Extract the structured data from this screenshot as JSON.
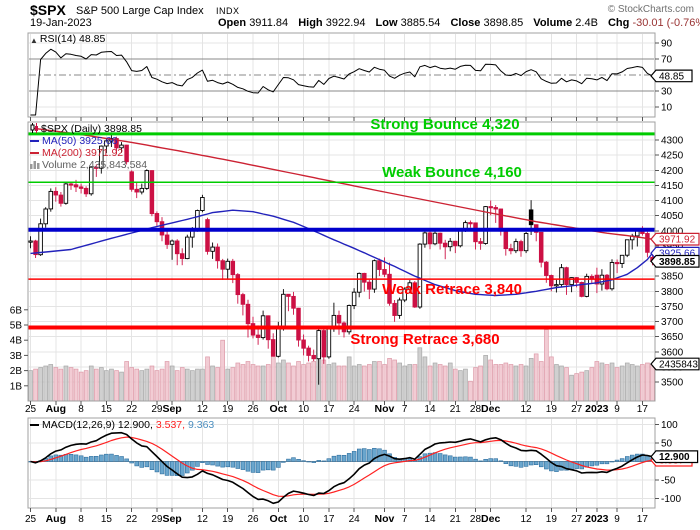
{
  "header": {
    "symbol": "$SPX",
    "name": "S&P 500 Large Cap Index",
    "exchange": "INDX",
    "credit": "© StockCharts.com",
    "date": "19-Jan-2023",
    "open_label": "Open",
    "open": "3911.84",
    "high_label": "High",
    "high": "3922.94",
    "low_label": "Low",
    "low": "3885.54",
    "close_label": "Close",
    "close": "3898.85",
    "volume_label": "Volume",
    "volume": "2.4B",
    "chg_label": "Chg",
    "chg": "-30.01 (-0.76%)",
    "chg_arrow": "▼"
  },
  "rsi_panel": {
    "legend": "RSI(14) 48.85"
  },
  "main_panel": {
    "legend_symbol": "$SPX (Daily) 3898.85",
    "legend_ma50": "MA(50) 3925.66",
    "legend_ma200": "MA(200) 3971.92",
    "legend_volume": "Volume 2,435,843,584",
    "annotations": [
      {
        "text": "Strong Bounce 4,320",
        "value": 4320,
        "color": "#00cc00"
      },
      {
        "text": "Weak Bounce 4,160",
        "value": 4160,
        "color": "#00cc00"
      },
      {
        "text": "Weak Retrace 3,840",
        "value": 3840,
        "color": "#ff0000"
      },
      {
        "text": "Strong Retrace 3,680",
        "value": 3680,
        "color": "#ff0000"
      }
    ]
  },
  "macd_panel": {
    "legend_name": "MACD(12,26,9)",
    "v1": "12.900,",
    "v2": "3.537,",
    "v3": "9.363"
  },
  "chart_data": {
    "type": "candlestick",
    "title": "$SPX S&P 500 Large Cap Index daily with RSI(14), MA(50), MA(200), volume and MACD(12,26,9)",
    "price_axis": {
      "min": 3500,
      "max": 4300,
      "step": 50
    },
    "volume_axis_labels": [
      "6B",
      "5B",
      "4B",
      "3B",
      "2B",
      "1B"
    ],
    "rsi_axis_labels": [
      90,
      70,
      30,
      10
    ],
    "macd_axis_labels": [
      100,
      50,
      -50,
      -100
    ],
    "x_ticks": [
      {
        "i": 0,
        "l": "25",
        "m": 0
      },
      {
        "i": 5,
        "l": "Aug",
        "m": 1
      },
      {
        "i": 10,
        "l": "8",
        "m": 0
      },
      {
        "i": 15,
        "l": "15",
        "m": 0
      },
      {
        "i": 20,
        "l": "22",
        "m": 0
      },
      {
        "i": 25,
        "l": "29",
        "m": 0
      },
      {
        "i": 28,
        "l": "Sep",
        "m": 1
      },
      {
        "i": 34,
        "l": "12",
        "m": 0
      },
      {
        "i": 39,
        "l": "19",
        "m": 0
      },
      {
        "i": 44,
        "l": "26",
        "m": 0
      },
      {
        "i": 49,
        "l": "Oct",
        "m": 1
      },
      {
        "i": 54,
        "l": "10",
        "m": 0
      },
      {
        "i": 59,
        "l": "17",
        "m": 0
      },
      {
        "i": 64,
        "l": "24",
        "m": 0
      },
      {
        "i": 70,
        "l": "Nov",
        "m": 1
      },
      {
        "i": 74,
        "l": "7",
        "m": 0
      },
      {
        "i": 79,
        "l": "14",
        "m": 0
      },
      {
        "i": 84,
        "l": "21",
        "m": 0
      },
      {
        "i": 88,
        "l": "28",
        "m": 0
      },
      {
        "i": 91,
        "l": "Dec",
        "m": 1
      },
      {
        "i": 98,
        "l": "12",
        "m": 0
      },
      {
        "i": 103,
        "l": "19",
        "m": 0
      },
      {
        "i": 108,
        "l": "27",
        "m": 0
      },
      {
        "i": 112,
        "l": "2023",
        "m": 1
      },
      {
        "i": 116,
        "l": "9",
        "m": 0
      },
      {
        "i": 121,
        "l": "17",
        "m": 0
      }
    ],
    "hlines": [
      {
        "value": 4320,
        "color": "#00cc00",
        "width": 3
      },
      {
        "value": 4160,
        "color": "#00cc00",
        "width": 1.5
      },
      {
        "value": 4003,
        "color": "#0000cc",
        "width": 4
      },
      {
        "value": 3840,
        "color": "#ff0000",
        "width": 1.5
      },
      {
        "value": 3680,
        "color": "#ff0000",
        "width": 4
      }
    ],
    "rsi_lines": [
      {
        "value": 70,
        "style": "solid"
      },
      {
        "value": 50,
        "style": "dashdot"
      },
      {
        "value": 30,
        "style": "solid"
      }
    ],
    "tags": [
      {
        "panel": "rsi",
        "value": 48.85,
        "text": "48.85",
        "color": "#000000",
        "bold": false
      },
      {
        "panel": "price",
        "value": 3971.92,
        "text": "3971.92",
        "color": "#cc2233",
        "bold": false
      },
      {
        "panel": "price",
        "value": 3925.66,
        "text": "3925.66",
        "color": "#2222bb",
        "bold": false
      },
      {
        "panel": "price",
        "value": 3898.85,
        "text": "3898.85",
        "color": "#000000",
        "bold": true
      },
      {
        "panel": "volume",
        "value": 2.435,
        "text": "2435843",
        "color": "#000000",
        "bold": false
      },
      {
        "panel": "macd",
        "value": 3.537,
        "text": "3.537",
        "color": "#ff2222",
        "bold": false
      },
      {
        "panel": "macd",
        "value": 12.9,
        "text": "12.900",
        "color": "#000000",
        "bold": true
      }
    ],
    "indicators": {
      "rsi_period": 14,
      "macd_fast": 12,
      "macd_slow": 26,
      "macd_signal": 9
    },
    "ma50_points": [
      [
        0,
        3925
      ],
      [
        8,
        3938
      ],
      [
        16,
        3975
      ],
      [
        24,
        4010
      ],
      [
        32,
        4042
      ],
      [
        36,
        4060
      ],
      [
        40,
        4068
      ],
      [
        44,
        4063
      ],
      [
        48,
        4048
      ],
      [
        52,
        4028
      ],
      [
        56,
        4000
      ],
      [
        60,
        3970
      ],
      [
        64,
        3942
      ],
      [
        68,
        3912
      ],
      [
        72,
        3882
      ],
      [
        76,
        3850
      ],
      [
        80,
        3822
      ],
      [
        84,
        3802
      ],
      [
        88,
        3790
      ],
      [
        92,
        3786
      ],
      [
        96,
        3790
      ],
      [
        100,
        3800
      ],
      [
        104,
        3812
      ],
      [
        108,
        3820
      ],
      [
        112,
        3828
      ],
      [
        115,
        3838
      ],
      [
        118,
        3856
      ],
      [
        120,
        3878
      ],
      [
        122,
        3905
      ],
      [
        123,
        3926
      ]
    ],
    "ma200_points": [
      [
        0,
        4340
      ],
      [
        10,
        4318
      ],
      [
        20,
        4292
      ],
      [
        30,
        4262
      ],
      [
        40,
        4230
      ],
      [
        50,
        4196
      ],
      [
        60,
        4162
      ],
      [
        70,
        4128
      ],
      [
        80,
        4095
      ],
      [
        90,
        4062
      ],
      [
        100,
        4030
      ],
      [
        108,
        4008
      ],
      [
        114,
        3992
      ],
      [
        118,
        3984
      ],
      [
        121,
        3977
      ],
      [
        123,
        3972
      ]
    ],
    "candles": [
      [
        3965,
        3982,
        3942,
        3966
      ],
      [
        3966,
        3970,
        3910,
        3921
      ],
      [
        3921,
        4040,
        3917,
        4023
      ],
      [
        4023,
        4078,
        4010,
        4072
      ],
      [
        4072,
        4140,
        4063,
        4130
      ],
      [
        4130,
        4144,
        4096,
        4118
      ],
      [
        4118,
        4128,
        4080,
        4091
      ],
      [
        4091,
        4160,
        4086,
        4155
      ],
      [
        4155,
        4161,
        4135,
        4152
      ],
      [
        4152,
        4168,
        4128,
        4145
      ],
      [
        4145,
        4156,
        4123,
        4140
      ],
      [
        4140,
        4147,
        4112,
        4122
      ],
      [
        4122,
        4212,
        4116,
        4210
      ],
      [
        4210,
        4219,
        4178,
        4207
      ],
      [
        4207,
        4282,
        4189,
        4280
      ],
      [
        4280,
        4302,
        4257,
        4297
      ],
      [
        4297,
        4325,
        4277,
        4305
      ],
      [
        4305,
        4311,
        4254,
        4274
      ],
      [
        4274,
        4293,
        4258,
        4283
      ],
      [
        4283,
        4284,
        4219,
        4228
      ],
      [
        4195,
        4200,
        4129,
        4137
      ],
      [
        4137,
        4159,
        4108,
        4128
      ],
      [
        4128,
        4156,
        4120,
        4140
      ],
      [
        4140,
        4203,
        4135,
        4199
      ],
      [
        4199,
        4200,
        4048,
        4057
      ],
      [
        4057,
        4064,
        4015,
        4030
      ],
      [
        4030,
        4045,
        3965,
        3986
      ],
      [
        3986,
        4000,
        3940,
        3955
      ],
      [
        3955,
        3971,
        3904,
        3966
      ],
      [
        3966,
        3972,
        3886,
        3924
      ],
      [
        3924,
        3942,
        3886,
        3908
      ],
      [
        3908,
        3987,
        3906,
        3979
      ],
      [
        3979,
        4012,
        3944,
        4006
      ],
      [
        4006,
        4070,
        3997,
        4067
      ],
      [
        4067,
        4119,
        4061,
        4110
      ],
      [
        4037,
        4043,
        3921,
        3932
      ],
      [
        3932,
        3961,
        3907,
        3946
      ],
      [
        3946,
        3958,
        3875,
        3901
      ],
      [
        3901,
        3907,
        3838,
        3873
      ],
      [
        3873,
        3908,
        3842,
        3899
      ],
      [
        3899,
        3907,
        3827,
        3855
      ],
      [
        3855,
        3860,
        3759,
        3789
      ],
      [
        3789,
        3795,
        3720,
        3757
      ],
      [
        3757,
        3772,
        3647,
        3693
      ],
      [
        3693,
        3716,
        3644,
        3655
      ],
      [
        3655,
        3687,
        3623,
        3647
      ],
      [
        3647,
        3736,
        3640,
        3719
      ],
      [
        3719,
        3720,
        3610,
        3640
      ],
      [
        3640,
        3661,
        3584,
        3585
      ],
      [
        3585,
        3699,
        3581,
        3678
      ],
      [
        3678,
        3807,
        3670,
        3790
      ],
      [
        3790,
        3791,
        3734,
        3783
      ],
      [
        3783,
        3798,
        3722,
        3744
      ],
      [
        3744,
        3745,
        3617,
        3639
      ],
      [
        3639,
        3657,
        3588,
        3612
      ],
      [
        3612,
        3620,
        3568,
        3588
      ],
      [
        3588,
        3607,
        3569,
        3577
      ],
      [
        3577,
        3685,
        3491,
        3670
      ],
      [
        3670,
        3674,
        3560,
        3583
      ],
      [
        3583,
        3685,
        3577,
        3678
      ],
      [
        3678,
        3762,
        3666,
        3720
      ],
      [
        3720,
        3736,
        3656,
        3695
      ],
      [
        3695,
        3700,
        3647,
        3666
      ],
      [
        3666,
        3756,
        3657,
        3753
      ],
      [
        3753,
        3810,
        3741,
        3797
      ],
      [
        3797,
        3862,
        3780,
        3859
      ],
      [
        3859,
        3861,
        3799,
        3830
      ],
      [
        3830,
        3838,
        3774,
        3807
      ],
      [
        3807,
        3905,
        3795,
        3901
      ],
      [
        3901,
        3908,
        3850,
        3872
      ],
      [
        3872,
        3912,
        3847,
        3856
      ],
      [
        3856,
        3895,
        3752,
        3760
      ],
      [
        3760,
        3771,
        3699,
        3720
      ],
      [
        3720,
        3779,
        3709,
        3771
      ],
      [
        3771,
        3813,
        3764,
        3807
      ],
      [
        3807,
        3837,
        3793,
        3828
      ],
      [
        3828,
        3834,
        3745,
        3748
      ],
      [
        3748,
        3959,
        3742,
        3956
      ],
      [
        3956,
        4001,
        3944,
        3993
      ],
      [
        3993,
        4005,
        3939,
        3957
      ],
      [
        3957,
        4003,
        3952,
        3992
      ],
      [
        3992,
        3994,
        3938,
        3959
      ],
      [
        3959,
        3970,
        3906,
        3947
      ],
      [
        3947,
        3976,
        3932,
        3965
      ],
      [
        3965,
        3967,
        3926,
        3950
      ],
      [
        3950,
        4007,
        3945,
        4004
      ],
      [
        4004,
        4034,
        3996,
        4027
      ],
      [
        4027,
        4034,
        4010,
        4026
      ],
      [
        4026,
        4027,
        3938,
        3964
      ],
      [
        3964,
        3976,
        3937,
        3958
      ],
      [
        3958,
        4081,
        3954,
        4080
      ],
      [
        4080,
        4100,
        4051,
        4077
      ],
      [
        4077,
        4085,
        4026,
        4072
      ],
      [
        4072,
        4073,
        3984,
        3999
      ],
      [
        3999,
        4001,
        3918,
        3941
      ],
      [
        3941,
        3957,
        3922,
        3934
      ],
      [
        3934,
        3974,
        3926,
        3964
      ],
      [
        3964,
        3970,
        3914,
        3934
      ],
      [
        3934,
        3996,
        3926,
        3991
      ],
      [
        4069,
        4101,
        3986,
        4020
      ],
      [
        4020,
        4021,
        3965,
        3995
      ],
      [
        3995,
        3996,
        3879,
        3896
      ],
      [
        3896,
        3900,
        3828,
        3852
      ],
      [
        3852,
        3855,
        3800,
        3818
      ],
      [
        3818,
        3838,
        3796,
        3822
      ],
      [
        3822,
        3890,
        3815,
        3878
      ],
      [
        3878,
        3881,
        3788,
        3822
      ],
      [
        3822,
        3846,
        3797,
        3845
      ],
      [
        3845,
        3847,
        3813,
        3829
      ],
      [
        3829,
        3832,
        3780,
        3783
      ],
      [
        3783,
        3858,
        3780,
        3849
      ],
      [
        3849,
        3856,
        3824,
        3840
      ],
      [
        3853,
        3878,
        3794,
        3824
      ],
      [
        3824,
        3873,
        3802,
        3853
      ],
      [
        3853,
        3857,
        3803,
        3808
      ],
      [
        3808,
        3906,
        3802,
        3895
      ],
      [
        3895,
        3905,
        3860,
        3892
      ],
      [
        3892,
        3920,
        3877,
        3919
      ],
      [
        3919,
        3971,
        3913,
        3970
      ],
      [
        3970,
        3990,
        3938,
        3983
      ],
      [
        3983,
        4003,
        3948,
        3999
      ],
      [
        3999,
        4015,
        3984,
        3991
      ],
      [
        3991,
        3997,
        3912,
        3929
      ],
      [
        3912,
        3923,
        3886,
        3898.85
      ]
    ],
    "volumes": [
      2.0,
      2.1,
      2.2,
      2.3,
      2.4,
      2.2,
      2.1,
      2.3,
      2.2,
      2.1,
      1.9,
      2.0,
      2.3,
      2.1,
      2.2,
      2.0,
      2.1,
      2.0,
      1.9,
      2.6,
      2.2,
      2.1,
      2.0,
      2.1,
      2.3,
      2.0,
      2.1,
      2.6,
      2.3,
      2.0,
      2.2,
      2.1,
      2.0,
      2.1,
      2.1,
      2.9,
      2.3,
      2.2,
      4.0,
      2.1,
      2.2,
      2.5,
      2.4,
      2.6,
      2.4,
      2.3,
      2.3,
      2.4,
      3.2,
      2.5,
      2.7,
      2.5,
      2.3,
      2.6,
      2.4,
      2.5,
      2.6,
      3.2,
      2.7,
      2.4,
      2.5,
      2.3,
      2.3,
      2.9,
      2.3,
      2.4,
      2.3,
      2.4,
      2.6,
      2.6,
      2.4,
      2.8,
      2.7,
      2.5,
      2.3,
      2.4,
      2.4,
      3.5,
      2.9,
      2.3,
      2.5,
      2.4,
      2.3,
      2.5,
      2.1,
      2.0,
      2.1,
      1.3,
      2.2,
      2.3,
      3.0,
      2.7,
      2.4,
      2.4,
      2.5,
      2.4,
      2.3,
      2.4,
      2.3,
      2.8,
      3.1,
      2.6,
      4.7,
      2.9,
      2.4,
      2.3,
      2.2,
      1.7,
      1.8,
      1.9,
      2.0,
      2.2,
      2.6,
      2.5,
      2.4,
      2.5,
      2.2,
      2.3,
      2.5,
      2.4,
      2.3,
      2.4,
      2.5,
      2.4
    ]
  }
}
